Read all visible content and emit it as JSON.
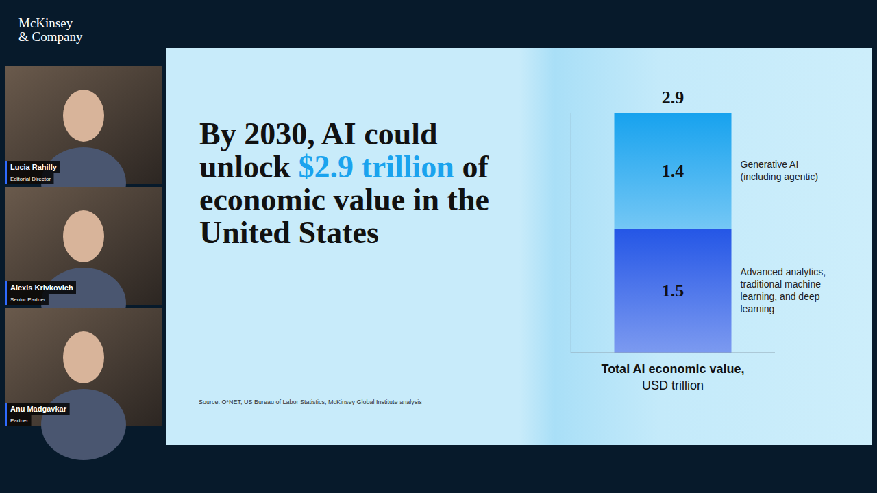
{
  "brand": [
    "McKinsey",
    "& Company"
  ],
  "participants": [
    {
      "name": "Lucia Rahilly",
      "role": "Editorial Director"
    },
    {
      "name": "Alexis Krivkovich",
      "role": "Senior Partner"
    },
    {
      "name": "Anu Madgavkar",
      "role": "Partner"
    }
  ],
  "slide": {
    "headline": [
      "By 2030, AI could unlock ",
      "$2.9 trillion",
      " of economic value in the United States"
    ],
    "source": "Source: O*NET; US Bureau of Labor Statistics; McKinsey Global Institute analysis"
  },
  "chart_data": {
    "type": "bar",
    "stacked": true,
    "data_labels": true,
    "legend": "right",
    "tick_labels": false,
    "categories": [
      null
    ],
    "series": [
      {
        "name": "Advanced analytics, traditional machine learning, and deep learning",
        "color": "#2456e6",
        "values": [
          1.5
        ]
      },
      {
        "name": "Generative AI (including agentic)",
        "color": "#17a2ee",
        "values": [
          1.4
        ]
      }
    ],
    "total": 2.9,
    "x_label": "Total AI economic value,",
    "x_unit_label": "USD trillion",
    "ylim": [
      0,
      2.9
    ],
    "yticks": [
      0
    ]
  }
}
